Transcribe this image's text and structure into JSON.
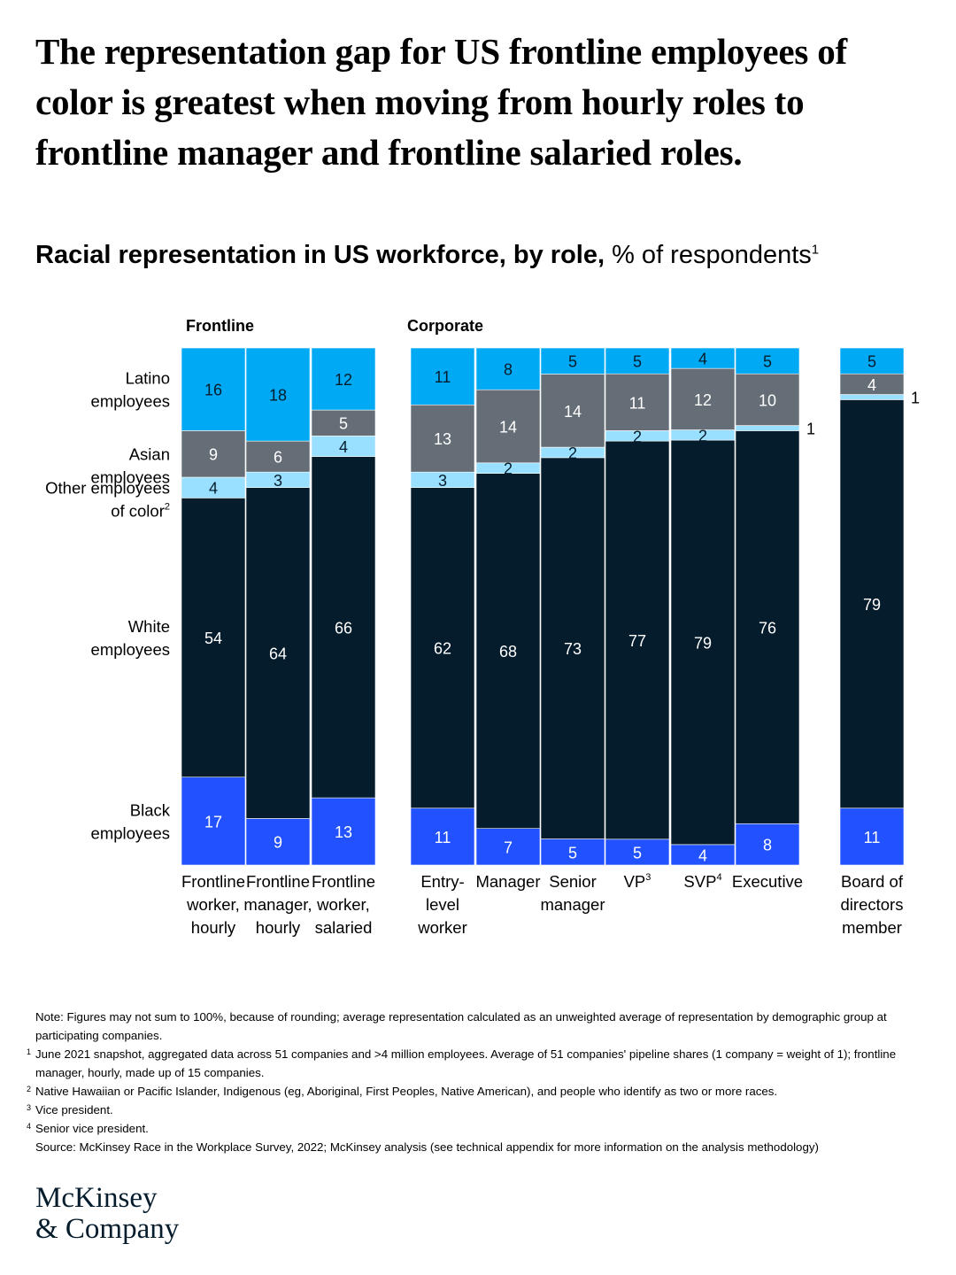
{
  "header": {
    "title": "The representation gap for US frontline employees of color is greatest when moving from hourly roles to frontline manager and frontline salaried roles.",
    "subtitle_bold": "Racial representation in US workforce, by role,",
    "subtitle_regular": "% of respondents",
    "subtitle_sup": "1"
  },
  "chart_data": {
    "type": "bar",
    "stacked": true,
    "normalized": true,
    "unit": "% of respondents",
    "groups": [
      {
        "label": "Frontline",
        "categories": [
          "Frontline worker, hourly",
          "Frontline manager, hourly",
          "Frontline worker, salaried"
        ]
      },
      {
        "label": "Corporate",
        "categories": [
          "Entry-level worker",
          "Manager",
          "Senior manager",
          "VP",
          "SVP",
          "Executive"
        ]
      },
      {
        "label": "",
        "categories": [
          "Board of directors member"
        ]
      }
    ],
    "categories": [
      "Frontline worker, hourly",
      "Frontline manager, hourly",
      "Frontline worker, salaried",
      "Entry-level worker",
      "Manager",
      "Senior manager",
      "VP",
      "SVP",
      "Executive",
      "Board of directors member"
    ],
    "category_labels": [
      [
        "Frontline",
        "worker,",
        "hourly"
      ],
      [
        "Frontline",
        "manager,",
        "hourly"
      ],
      [
        "Frontline",
        "worker,",
        "salaried"
      ],
      [
        "Entry-",
        "level",
        "worker"
      ],
      [
        "Manager"
      ],
      [
        "Senior",
        "manager"
      ],
      [
        "VP"
      ],
      [
        "SVP"
      ],
      [
        "Executive"
      ],
      [
        "Board of",
        "directors",
        "member"
      ]
    ],
    "category_sups": [
      "",
      "",
      "",
      "",
      "",
      "",
      "3",
      "4",
      "",
      ""
    ],
    "series": [
      {
        "name": "Black employees",
        "label_lines": [
          "Black",
          "employees"
        ],
        "color": "#2251ff",
        "values": [
          17,
          9,
          13,
          11,
          7,
          5,
          5,
          4,
          8,
          11
        ]
      },
      {
        "name": "White employees",
        "label_lines": [
          "White",
          "employees"
        ],
        "color": "#051c2c",
        "values": [
          54,
          64,
          66,
          62,
          68,
          73,
          77,
          79,
          76,
          79
        ]
      },
      {
        "name": "Other employees of color",
        "label_lines": [
          "Other employees",
          "of color"
        ],
        "label_sup": "2",
        "color": "#99dfff",
        "values": [
          4,
          3,
          4,
          3,
          2,
          2,
          2,
          2,
          1,
          1
        ]
      },
      {
        "name": "Asian employees",
        "label_lines": [
          "Asian",
          "employees"
        ],
        "color": "#656e76",
        "values": [
          9,
          6,
          5,
          13,
          14,
          14,
          11,
          12,
          10,
          4
        ]
      },
      {
        "name": "Latino employees",
        "label_lines": [
          "Latino",
          "employees"
        ],
        "color": "#00a9f4",
        "values": [
          16,
          18,
          12,
          11,
          8,
          5,
          5,
          4,
          5,
          5
        ]
      }
    ]
  },
  "notes": {
    "note": "Note: Figures may not sum to 100%, because of rounding; average representation calculated as an unweighted average of representation by demographic group at participating companies.",
    "footnote1_mark": "1",
    "footnote1": "June 2021 snapshot, aggregated data across 51 companies and >4 million employees. Average of 51 companies' pipeline shares (1 company = weight of 1); frontline manager, hourly, made up of 15 companies.",
    "footnote2_mark": "2",
    "footnote2": "Native Hawaiian or Pacific Islander, Indigenous (eg, Aboriginal, First Peoples, Native American), and people who identify as two or more races.",
    "footnote3_mark": "3",
    "footnote3": "Vice president.",
    "footnote4_mark": "4",
    "footnote4": "Senior vice president.",
    "source": "Source: McKinsey Race in the Workplace Survey, 2022; McKinsey analysis (see technical appendix for more information on the analysis methodology)"
  },
  "logo": {
    "line1": "McKinsey",
    "line2": "& Company"
  }
}
